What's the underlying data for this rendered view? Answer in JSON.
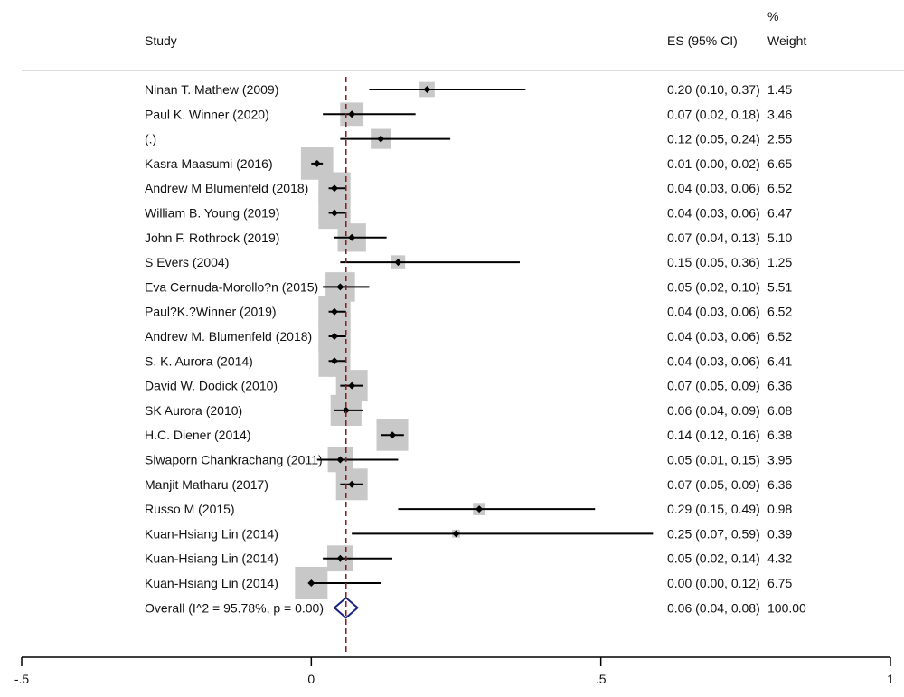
{
  "header": {
    "study_label": "Study",
    "es_label": "ES (95% CI)",
    "pct_label": "%",
    "weight_label": "Weight"
  },
  "chart_data": {
    "type": "forest",
    "xlim": [
      -0.5,
      1
    ],
    "x_ticks": [
      -0.5,
      0,
      0.5,
      1
    ],
    "x_tick_labels": [
      "-.5",
      "0",
      ".5",
      "1"
    ],
    "reference_line": 0.06,
    "studies": [
      {
        "label": "Ninan T. Mathew (2009)",
        "es": 0.2,
        "lo": 0.1,
        "hi": 0.37,
        "ci_text": "0.20 (0.10, 0.37)",
        "weight": 1.45,
        "weight_text": "1.45"
      },
      {
        "label": "Paul K. Winner (2020)",
        "es": 0.07,
        "lo": 0.02,
        "hi": 0.18,
        "ci_text": "0.07 (0.02, 0.18)",
        "weight": 3.46,
        "weight_text": "3.46"
      },
      {
        "label": "(.)",
        "es": 0.12,
        "lo": 0.05,
        "hi": 0.24,
        "ci_text": "0.12 (0.05, 0.24)",
        "weight": 2.55,
        "weight_text": "2.55"
      },
      {
        "label": "Kasra Maasumi (2016)",
        "es": 0.01,
        "lo": 0.0,
        "hi": 0.02,
        "ci_text": "0.01 (0.00, 0.02)",
        "weight": 6.65,
        "weight_text": "6.65"
      },
      {
        "label": "Andrew M Blumenfeld (2018)",
        "es": 0.04,
        "lo": 0.03,
        "hi": 0.06,
        "ci_text": "0.04 (0.03, 0.06)",
        "weight": 6.52,
        "weight_text": "6.52"
      },
      {
        "label": "William B. Young (2019)",
        "es": 0.04,
        "lo": 0.03,
        "hi": 0.06,
        "ci_text": "0.04 (0.03, 0.06)",
        "weight": 6.47,
        "weight_text": "6.47"
      },
      {
        "label": "John F. Rothrock (2019)",
        "es": 0.07,
        "lo": 0.04,
        "hi": 0.13,
        "ci_text": "0.07 (0.04, 0.13)",
        "weight": 5.1,
        "weight_text": "5.10"
      },
      {
        "label": "S Evers (2004)",
        "es": 0.15,
        "lo": 0.05,
        "hi": 0.36,
        "ci_text": "0.15 (0.05, 0.36)",
        "weight": 1.25,
        "weight_text": "1.25"
      },
      {
        "label": "Eva Cernuda-Morollo?n (2015)",
        "es": 0.05,
        "lo": 0.02,
        "hi": 0.1,
        "ci_text": "0.05 (0.02, 0.10)",
        "weight": 5.51,
        "weight_text": "5.51"
      },
      {
        "label": "Paul?K.?Winner (2019)",
        "es": 0.04,
        "lo": 0.03,
        "hi": 0.06,
        "ci_text": "0.04 (0.03, 0.06)",
        "weight": 6.52,
        "weight_text": "6.52"
      },
      {
        "label": "Andrew M. Blumenfeld (2018)",
        "es": 0.04,
        "lo": 0.03,
        "hi": 0.06,
        "ci_text": "0.04 (0.03, 0.06)",
        "weight": 6.52,
        "weight_text": "6.52"
      },
      {
        "label": "S. K. Aurora (2014)",
        "es": 0.04,
        "lo": 0.03,
        "hi": 0.06,
        "ci_text": "0.04 (0.03, 0.06)",
        "weight": 6.41,
        "weight_text": "6.41"
      },
      {
        "label": "David W. Dodick (2010)",
        "es": 0.07,
        "lo": 0.05,
        "hi": 0.09,
        "ci_text": "0.07 (0.05, 0.09)",
        "weight": 6.36,
        "weight_text": "6.36"
      },
      {
        "label": "SK Aurora (2010)",
        "es": 0.06,
        "lo": 0.04,
        "hi": 0.09,
        "ci_text": "0.06 (0.04, 0.09)",
        "weight": 6.08,
        "weight_text": "6.08"
      },
      {
        "label": "H.C. Diener (2014)",
        "es": 0.14,
        "lo": 0.12,
        "hi": 0.16,
        "ci_text": "0.14 (0.12, 0.16)",
        "weight": 6.38,
        "weight_text": "6.38"
      },
      {
        "label": "Siwaporn Chankrachang (2011)",
        "es": 0.05,
        "lo": 0.01,
        "hi": 0.15,
        "ci_text": "0.05 (0.01, 0.15)",
        "weight": 3.95,
        "weight_text": "3.95"
      },
      {
        "label": "Manjit Matharu (2017)",
        "es": 0.07,
        "lo": 0.05,
        "hi": 0.09,
        "ci_text": "0.07 (0.05, 0.09)",
        "weight": 6.36,
        "weight_text": "6.36"
      },
      {
        "label": "Russo M (2015)",
        "es": 0.29,
        "lo": 0.15,
        "hi": 0.49,
        "ci_text": "0.29 (0.15, 0.49)",
        "weight": 0.98,
        "weight_text": "0.98"
      },
      {
        "label": "Kuan-Hsiang Lin (2014)",
        "es": 0.25,
        "lo": 0.07,
        "hi": 0.59,
        "ci_text": "0.25 (0.07, 0.59)",
        "weight": 0.39,
        "weight_text": "0.39"
      },
      {
        "label": "Kuan-Hsiang Lin (2014)",
        "es": 0.05,
        "lo": 0.02,
        "hi": 0.14,
        "ci_text": "0.05 (0.02, 0.14)",
        "weight": 4.32,
        "weight_text": "4.32"
      },
      {
        "label": "Kuan-Hsiang Lin (2014)",
        "es": 0.0,
        "lo": 0.0,
        "hi": 0.12,
        "ci_text": "0.00 (0.00, 0.12)",
        "weight": 6.75,
        "weight_text": "6.75"
      }
    ],
    "overall": {
      "label": "Overall  (I^2 = 95.78%, p = 0.00)",
      "es": 0.06,
      "lo": 0.04,
      "hi": 0.08,
      "ci_text": "0.06 (0.04, 0.08)",
      "weight_text": "100.00"
    },
    "colors": {
      "box": "#c8c8c8",
      "ci": "#000000",
      "point": "#000000",
      "diamond": "#1a237e",
      "ref_line": "#8b1a1a",
      "separator": "#cfcfcf"
    }
  }
}
